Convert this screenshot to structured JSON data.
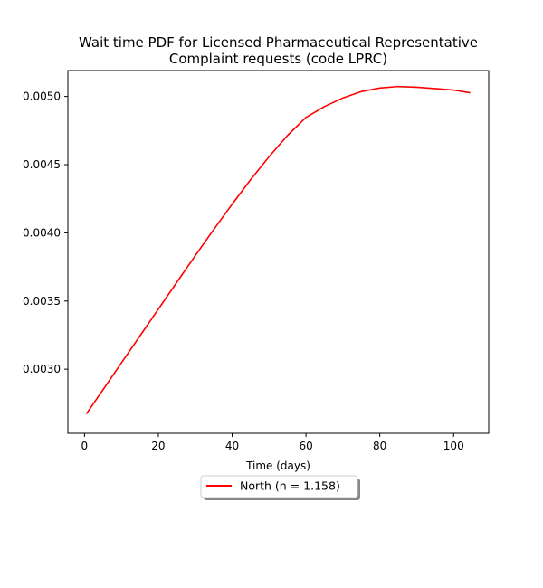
{
  "chart_data": {
    "type": "line",
    "title_line1": "Wait time PDF for Licensed Pharmaceutical Representative",
    "title_line2": "Complaint  requests (code LPRC)",
    "xlabel": "Time (days)",
    "ylabel": "",
    "xlim": [
      -4.5,
      109.5
    ],
    "ylim": [
      0.00253,
      0.00519
    ],
    "x_ticks": [
      0,
      20,
      40,
      60,
      80,
      100
    ],
    "y_ticks": [
      0.003,
      0.0035,
      0.004,
      0.0045,
      0.005
    ],
    "x_tick_labels": [
      "0",
      "20",
      "40",
      "60",
      "80",
      "100"
    ],
    "y_tick_labels": [
      "0.0030",
      "0.0035",
      "0.0040",
      "0.0045",
      "0.0050"
    ],
    "grid": false,
    "legend_position": "below plot, center",
    "series": [
      {
        "name": "North (n = 1.158)",
        "color": "#ff0000",
        "x": [
          0.5,
          5,
          10,
          15,
          20,
          25,
          30,
          35,
          40,
          45,
          50,
          55,
          60,
          65,
          70,
          75,
          80,
          85,
          90,
          95,
          100,
          104.5
        ],
        "y": [
          0.002672,
          0.002849,
          0.003046,
          0.003243,
          0.00344,
          0.003637,
          0.003832,
          0.004024,
          0.00421,
          0.00439,
          0.004558,
          0.004714,
          0.004846,
          0.004926,
          0.004989,
          0.005036,
          0.005062,
          0.005073,
          0.005068,
          0.005058,
          0.005047,
          0.005027
        ]
      }
    ]
  }
}
